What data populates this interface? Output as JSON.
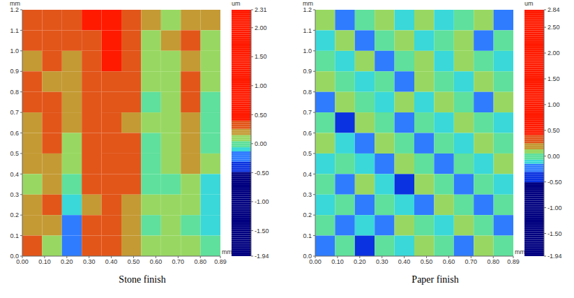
{
  "chart_data": [
    {
      "type": "heatmap",
      "title": "Stone finish",
      "x_label": "mm",
      "y_label": "mm",
      "xlim": [
        0,
        0.89
      ],
      "xticks": [
        {
          "value": 0,
          "label": "0.00"
        },
        {
          "value": 0.1,
          "label": "0.10"
        },
        {
          "value": 0.2,
          "label": "0.20"
        },
        {
          "value": 0.3,
          "label": "0.30"
        },
        {
          "value": 0.4,
          "label": "0.40"
        },
        {
          "value": 0.5,
          "label": "0.50"
        },
        {
          "value": 0.6,
          "label": "0.60"
        },
        {
          "value": 0.7,
          "label": "0.70"
        },
        {
          "value": 0.8,
          "label": "0.80"
        },
        0.89
      ],
      "ylim": [
        0,
        1.2
      ],
      "yticks": [
        {
          "value": 0,
          "label": "0.0"
        },
        0.1,
        0.2,
        0.3,
        0.4,
        0.5,
        0.6,
        0.7,
        0.8,
        0.9,
        {
          "value": 1,
          "label": "1.0"
        },
        1.1,
        1.2
      ],
      "cells": [
        [
          0.3,
          0.35,
          0.25,
          0.4,
          0.45,
          0.35,
          0.15,
          0.1,
          0.2,
          0.15
        ],
        [
          0.25,
          0.3,
          0.3,
          0.35,
          0.5,
          0.3,
          0.1,
          0.15,
          0.25,
          0.1
        ],
        [
          0.2,
          0.3,
          0.2,
          0.3,
          0.4,
          0.35,
          0.1,
          0.05,
          0.2,
          0.1
        ],
        [
          0.25,
          0.2,
          0.15,
          0.35,
          0.3,
          0.3,
          0.05,
          0.1,
          0.25,
          0.05
        ],
        [
          0.3,
          0.25,
          0.2,
          0.3,
          0.35,
          0.25,
          0.0,
          0.1,
          0.3,
          0.0
        ],
        [
          0.2,
          0.3,
          0.15,
          0.25,
          0.3,
          0.2,
          0.05,
          0.05,
          0.2,
          -0.05
        ],
        [
          0.15,
          0.25,
          0.1,
          0.3,
          0.35,
          0.25,
          0.0,
          0.1,
          0.15,
          0.0
        ],
        [
          0.2,
          0.2,
          0.05,
          0.25,
          0.3,
          0.3,
          -0.05,
          0.05,
          0.2,
          0.05
        ],
        [
          0.1,
          0.2,
          0.0,
          0.3,
          0.25,
          0.25,
          0.0,
          0.0,
          0.1,
          -0.1
        ],
        [
          0.15,
          0.25,
          -0.1,
          0.2,
          0.3,
          0.2,
          0.05,
          0.05,
          0.05,
          -0.15
        ],
        [
          0.2,
          0.15,
          -0.2,
          0.25,
          0.35,
          0.15,
          0.0,
          0.1,
          0.0,
          -0.1
        ],
        [
          0.25,
          0.1,
          -0.25,
          0.3,
          0.3,
          0.2,
          0.05,
          0.05,
          0.05,
          -0.05
        ]
      ],
      "colorbar": {
        "label": "um",
        "range": [
          -1.94,
          2.31
        ],
        "ticks": [
          2.31,
          {
            "value": 2,
            "label": "2.00"
          },
          {
            "value": 1.5,
            "label": "1.50"
          },
          {
            "value": 1,
            "label": "1.00"
          },
          {
            "value": 0.5,
            "label": "0.50"
          },
          {
            "value": 0,
            "label": "0.00"
          },
          {
            "value": -0.5,
            "label": "-0.50"
          },
          {
            "value": -1,
            "label": "-1.00"
          },
          {
            "value": -1.5,
            "label": "-1.50"
          },
          -1.94
        ]
      }
    },
    {
      "type": "heatmap",
      "title": "Paper finish",
      "x_label": "mm",
      "y_label": "mm",
      "xlim": [
        0,
        0.89
      ],
      "xticks": [
        {
          "value": 0,
          "label": "0.00"
        },
        {
          "value": 0.1,
          "label": "0.10"
        },
        {
          "value": 0.2,
          "label": "0.20"
        },
        {
          "value": 0.3,
          "label": "0.30"
        },
        {
          "value": 0.4,
          "label": "0.40"
        },
        {
          "value": 0.5,
          "label": "0.50"
        },
        {
          "value": 0.6,
          "label": "0.60"
        },
        {
          "value": 0.7,
          "label": "0.70"
        },
        {
          "value": 0.8,
          "label": "0.80"
        },
        0.89
      ],
      "ylim": [
        0,
        1.2
      ],
      "yticks": [
        {
          "value": 0,
          "label": "0.0"
        },
        0.1,
        0.2,
        0.3,
        0.4,
        0.5,
        0.6,
        0.7,
        0.8,
        0.9,
        {
          "value": 1,
          "label": "1.0"
        },
        1.1,
        1.2
      ],
      "cells": [
        [
          0.05,
          -0.2,
          0.0,
          0.1,
          -0.1,
          0.05,
          -0.15,
          0.0,
          0.1,
          -0.2
        ],
        [
          -0.1,
          0.05,
          -0.2,
          0.0,
          0.1,
          -0.15,
          0.0,
          0.05,
          -0.2,
          0.0
        ],
        [
          0.0,
          -0.1,
          0.05,
          -0.25,
          0.0,
          0.05,
          -0.1,
          0.1,
          0.0,
          -0.1
        ],
        [
          0.1,
          0.0,
          -0.1,
          0.0,
          -0.2,
          0.1,
          0.0,
          -0.15,
          0.05,
          0.0
        ],
        [
          -0.3,
          0.05,
          0.0,
          -0.1,
          0.05,
          -0.15,
          0.1,
          0.0,
          -0.2,
          0.05
        ],
        [
          0.0,
          -0.35,
          0.1,
          0.0,
          -0.2,
          0.0,
          -0.1,
          0.05,
          0.0,
          -0.15
        ],
        [
          0.05,
          -0.1,
          -0.3,
          0.05,
          0.0,
          -0.25,
          0.0,
          -0.1,
          0.1,
          0.0
        ],
        [
          -0.1,
          0.0,
          -0.15,
          -0.3,
          0.1,
          0.0,
          -0.2,
          0.0,
          -0.1,
          0.05
        ],
        [
          0.0,
          -0.2,
          0.05,
          -0.1,
          -0.35,
          0.05,
          0.0,
          -0.25,
          0.0,
          -0.1
        ],
        [
          -0.15,
          0.0,
          -0.3,
          0.0,
          -0.1,
          -0.2,
          0.1,
          0.0,
          -0.3,
          0.0
        ],
        [
          0.0,
          -0.3,
          -0.1,
          -0.25,
          0.05,
          0.0,
          -0.15,
          0.05,
          0.0,
          -0.2
        ],
        [
          -0.2,
          0.0,
          -0.35,
          0.0,
          -0.1,
          0.05,
          0.0,
          -0.2,
          0.05,
          0.0
        ]
      ],
      "colorbar": {
        "label": "um",
        "range": [
          -1.94,
          2.84
        ],
        "ticks": [
          2.84,
          {
            "value": 2.5,
            "label": "2.50"
          },
          {
            "value": 2,
            "label": "2.00"
          },
          {
            "value": 1.5,
            "label": "1.50"
          },
          {
            "value": 1,
            "label": "1.00"
          },
          {
            "value": 0.5,
            "label": "0.50"
          },
          {
            "value": 0,
            "label": "0.00"
          },
          {
            "value": -0.5,
            "label": "-0.50"
          },
          {
            "value": -1,
            "label": "-1.00"
          },
          {
            "value": -1.5,
            "label": "-1.50"
          },
          -1.94
        ]
      }
    }
  ]
}
